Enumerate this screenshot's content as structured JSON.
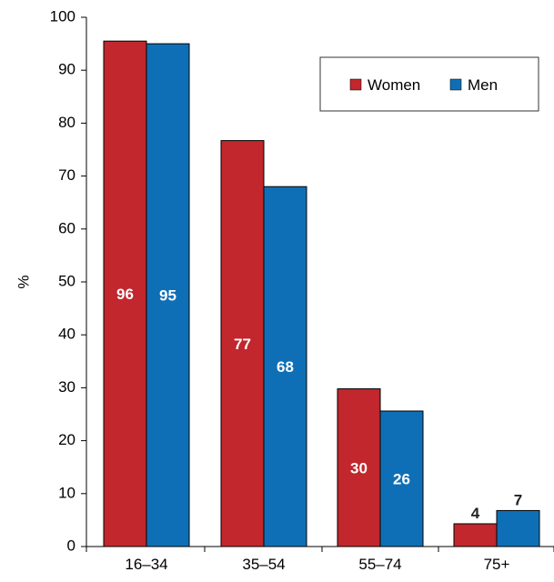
{
  "chart_data": {
    "type": "bar",
    "title": "",
    "xlabel": "",
    "ylabel": "%",
    "ylim": [
      0,
      100
    ],
    "yticks": [
      0,
      10,
      20,
      30,
      40,
      50,
      60,
      70,
      80,
      90,
      100
    ],
    "categories": [
      "16–34",
      "35–54",
      "55–74",
      "75+"
    ],
    "series": [
      {
        "name": "Women",
        "color": "#c1272d",
        "values": [
          95.5,
          76.7,
          29.8,
          4.3
        ],
        "labels": [
          "96",
          "77",
          "30",
          "4"
        ]
      },
      {
        "name": "Men",
        "color": "#0f6fb6",
        "values": [
          95,
          68,
          25.6,
          6.8
        ],
        "labels": [
          "95",
          "68",
          "26",
          "7"
        ]
      }
    ],
    "grid": false,
    "legend_position": "top-right"
  }
}
